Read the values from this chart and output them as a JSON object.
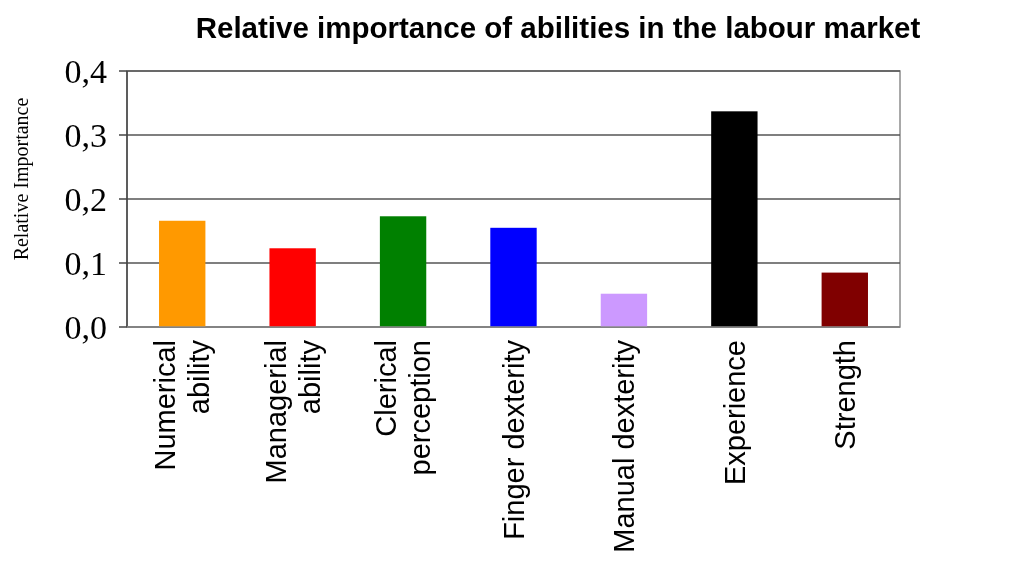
{
  "chart_data": {
    "type": "bar",
    "title": "Relative importance of abilities in the labour market",
    "ylabel": "Relative Importance",
    "categories": [
      "Numerical\nability",
      "Managerial\nability",
      "Clerical\nperception",
      "Finger dexterity",
      "Manual dexterity",
      "Experience",
      "Strength"
    ],
    "values": [
      0.166,
      0.123,
      0.173,
      0.155,
      0.052,
      0.337,
      0.085
    ],
    "colors": [
      "#ff9900",
      "#ff0000",
      "#008000",
      "#0000ff",
      "#cc99ff",
      "#000000",
      "#800000"
    ],
    "ylim": [
      0,
      0.4
    ],
    "yticks": [
      {
        "value": 0,
        "label": "0,0"
      },
      {
        "value": 0.1,
        "label": "0,1"
      },
      {
        "value": 0.2,
        "label": "0,2"
      },
      {
        "value": 0.3,
        "label": "0,3"
      },
      {
        "value": 0.4,
        "label": "0,4"
      }
    ],
    "grid": "y"
  }
}
